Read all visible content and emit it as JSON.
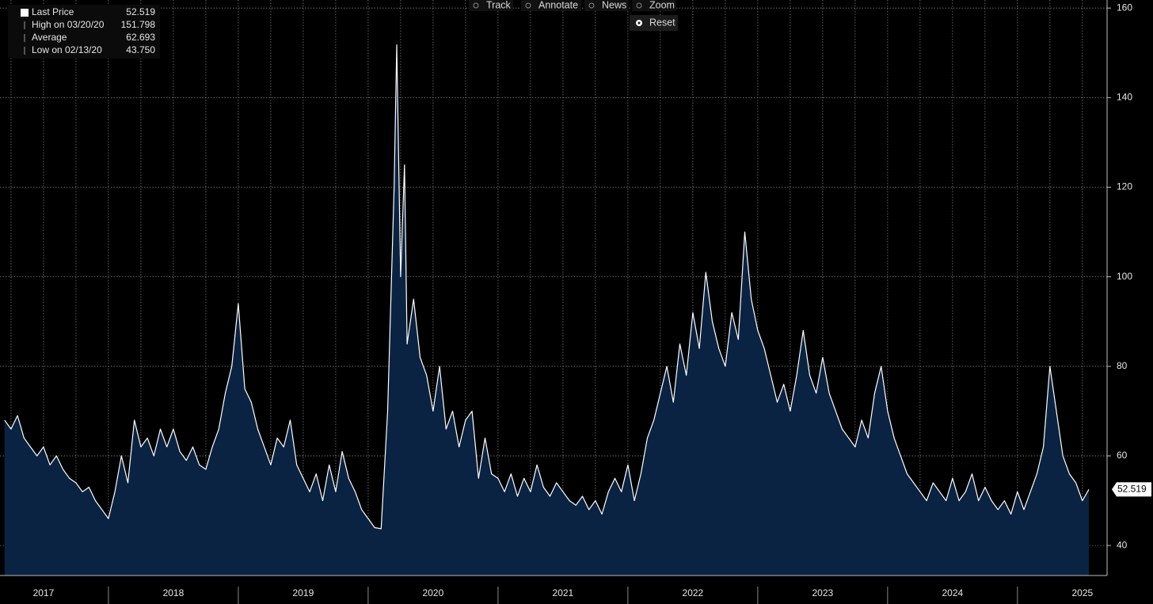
{
  "chart_data": {
    "type": "area",
    "legend": [
      {
        "label": "Last Price",
        "value": 52.519
      },
      {
        "label": "High on 03/20/20",
        "value": 151.798
      },
      {
        "label": "Average",
        "value": 62.693
      },
      {
        "label": "Low on 02/13/20",
        "value": 43.75,
        "value_label": "43.750"
      }
    ],
    "toolbar": [
      "Track",
      "Annotate",
      "News",
      "Zoom"
    ],
    "reset": "Reset",
    "xlim": [
      2017.165,
      2025.69
    ],
    "xticks": [
      {
        "value": 2017.5,
        "label": "2017"
      },
      {
        "value": 2018.5,
        "label": "2018"
      },
      {
        "value": 2019.5,
        "label": "2019"
      },
      {
        "value": 2020.5,
        "label": "2020"
      },
      {
        "value": 2021.5,
        "label": "2021"
      },
      {
        "value": 2022.5,
        "label": "2022"
      },
      {
        "value": 2023.5,
        "label": "2023"
      },
      {
        "value": 2024.5,
        "label": "2024"
      },
      {
        "value": 2025.5,
        "label": "2025"
      }
    ],
    "ylim": [
      33.3,
      161.8
    ],
    "yticks": [
      40,
      60,
      80,
      100,
      120,
      140,
      160
    ],
    "grid": true,
    "series": [
      {
        "name": "Last Price",
        "color": "#ffffff",
        "fill": "#0a2342",
        "x": [
          2017.2,
          2017.25,
          2017.3,
          2017.35,
          2017.4,
          2017.45,
          2017.5,
          2017.55,
          2017.6,
          2017.65,
          2017.7,
          2017.75,
          2017.8,
          2017.85,
          2017.9,
          2017.95,
          2018.0,
          2018.05,
          2018.1,
          2018.15,
          2018.2,
          2018.25,
          2018.3,
          2018.35,
          2018.4,
          2018.45,
          2018.5,
          2018.55,
          2018.6,
          2018.65,
          2018.7,
          2018.75,
          2018.8,
          2018.85,
          2018.9,
          2018.95,
          2019.0,
          2019.05,
          2019.1,
          2019.15,
          2019.2,
          2019.25,
          2019.3,
          2019.35,
          2019.4,
          2019.45,
          2019.5,
          2019.55,
          2019.6,
          2019.65,
          2019.7,
          2019.75,
          2019.8,
          2019.85,
          2019.9,
          2019.95,
          2020.0,
          2020.05,
          2020.1,
          2020.15,
          2020.2,
          2020.22,
          2020.25,
          2020.28,
          2020.3,
          2020.35,
          2020.4,
          2020.45,
          2020.5,
          2020.55,
          2020.6,
          2020.65,
          2020.7,
          2020.75,
          2020.8,
          2020.85,
          2020.9,
          2020.95,
          2021.0,
          2021.05,
          2021.1,
          2021.15,
          2021.2,
          2021.25,
          2021.3,
          2021.35,
          2021.4,
          2021.45,
          2021.5,
          2021.55,
          2021.6,
          2021.65,
          2021.7,
          2021.75,
          2021.8,
          2021.85,
          2021.9,
          2021.95,
          2022.0,
          2022.05,
          2022.1,
          2022.15,
          2022.2,
          2022.25,
          2022.3,
          2022.35,
          2022.4,
          2022.45,
          2022.5,
          2022.55,
          2022.6,
          2022.65,
          2022.7,
          2022.75,
          2022.8,
          2022.85,
          2022.9,
          2022.95,
          2023.0,
          2023.05,
          2023.1,
          2023.15,
          2023.2,
          2023.25,
          2023.3,
          2023.35,
          2023.4,
          2023.45,
          2023.5,
          2023.55,
          2023.6,
          2023.65,
          2023.7,
          2023.75,
          2023.8,
          2023.85,
          2023.9,
          2023.95,
          2024.0,
          2024.05,
          2024.1,
          2024.15,
          2024.2,
          2024.25,
          2024.3,
          2024.35,
          2024.4,
          2024.45,
          2024.5,
          2024.55,
          2024.6,
          2024.65,
          2024.7,
          2024.75,
          2024.8,
          2024.85,
          2024.9,
          2024.95,
          2025.0,
          2025.05,
          2025.1,
          2025.15,
          2025.2,
          2025.25,
          2025.3,
          2025.35,
          2025.4,
          2025.45,
          2025.5,
          2025.55
        ],
        "values": [
          68,
          66,
          69,
          64,
          62,
          60,
          62,
          58,
          60,
          57,
          55,
          54,
          52,
          53,
          50,
          48,
          46,
          52,
          60,
          54,
          68,
          62,
          64,
          60,
          66,
          62,
          66,
          61,
          59,
          62,
          58,
          57,
          62,
          66,
          74,
          80,
          94,
          75,
          72,
          66,
          62,
          58,
          64,
          62,
          68,
          58,
          55,
          52,
          56,
          50,
          58,
          52,
          61,
          55,
          52,
          48,
          46,
          44,
          43.75,
          70,
          120,
          151.798,
          100,
          125,
          85,
          95,
          82,
          78,
          70,
          80,
          66,
          70,
          62,
          68,
          70,
          55,
          64,
          56,
          55,
          52,
          56,
          51,
          55,
          52,
          58,
          53,
          51,
          54,
          52,
          50,
          49,
          51,
          48,
          50,
          47,
          52,
          55,
          52,
          58,
          50,
          56,
          64,
          68,
          74,
          80,
          72,
          85,
          78,
          92,
          84,
          101,
          90,
          84,
          80,
          92,
          86,
          110,
          95,
          88,
          84,
          78,
          72,
          76,
          70,
          78,
          88,
          78,
          74,
          82,
          74,
          70,
          66,
          64,
          62,
          68,
          64,
          74,
          80,
          70,
          64,
          60,
          56,
          54,
          52,
          50,
          54,
          52,
          50,
          55,
          50,
          52,
          56,
          50,
          53,
          50,
          48,
          50,
          47,
          52,
          48,
          52,
          56,
          62,
          80,
          70,
          60,
          56,
          54,
          50,
          52.519
        ]
      }
    ]
  }
}
